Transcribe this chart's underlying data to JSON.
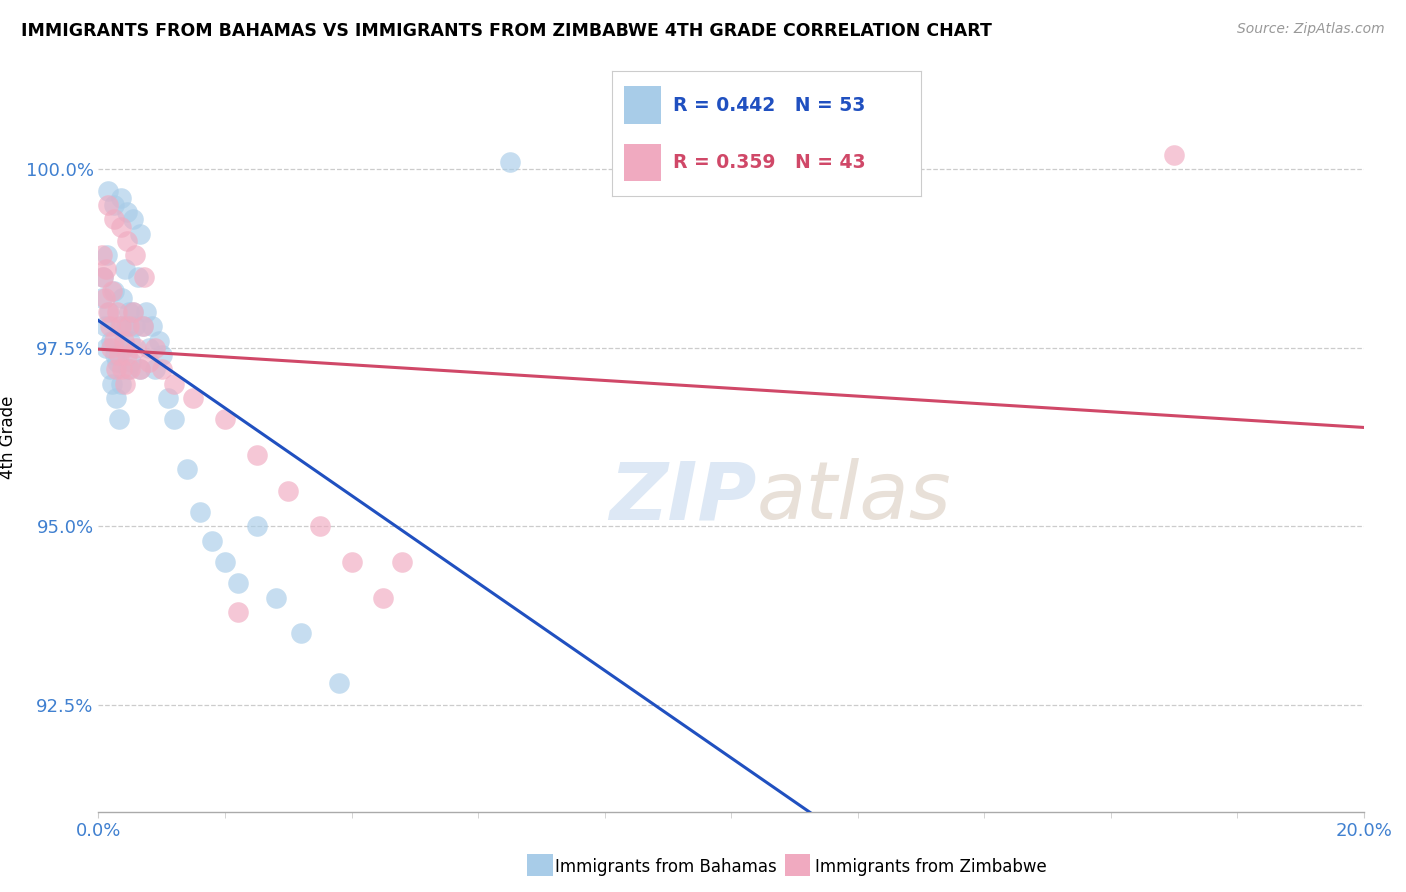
{
  "title": "IMMIGRANTS FROM BAHAMAS VS IMMIGRANTS FROM ZIMBABWE 4TH GRADE CORRELATION CHART",
  "source": "Source: ZipAtlas.com",
  "ylabel": "4th Grade",
  "y_ticks": [
    92.5,
    95.0,
    97.5,
    100.0
  ],
  "y_tick_labels": [
    "92.5%",
    "95.0%",
    "97.5%",
    "100.0%"
  ],
  "x_lim": [
    0.0,
    20.0
  ],
  "y_lim": [
    91.0,
    101.5
  ],
  "bahamas_color": "#a8cce8",
  "zimbabwe_color": "#f0aac0",
  "bahamas_line_color": "#2050c0",
  "zimbabwe_line_color": "#d04868",
  "tick_color": "#4080d0",
  "R_bahamas": 0.442,
  "N_bahamas": 53,
  "R_zimbabwe": 0.359,
  "N_zimbabwe": 43,
  "legend_label_bahamas": "Immigrants from Bahamas",
  "legend_label_zimbabwe": "Immigrants from Zimbabwe",
  "bahamas_x": [
    0.05,
    0.08,
    0.1,
    0.12,
    0.14,
    0.16,
    0.18,
    0.2,
    0.22,
    0.24,
    0.26,
    0.28,
    0.3,
    0.32,
    0.34,
    0.36,
    0.38,
    0.4,
    0.42,
    0.44,
    0.46,
    0.48,
    0.5,
    0.52,
    0.55,
    0.58,
    0.62,
    0.65,
    0.7,
    0.75,
    0.8,
    0.85,
    0.9,
    0.95,
    1.0,
    1.1,
    1.2,
    1.4,
    1.6,
    1.8,
    2.0,
    2.2,
    2.5,
    2.8,
    3.2,
    0.15,
    0.25,
    0.35,
    0.45,
    0.55,
    0.65,
    3.8,
    6.5
  ],
  "bahamas_y": [
    98.2,
    98.5,
    97.8,
    97.5,
    98.8,
    98.0,
    97.2,
    97.6,
    97.0,
    98.3,
    97.4,
    96.8,
    97.3,
    96.5,
    97.8,
    97.0,
    98.2,
    97.5,
    98.6,
    97.8,
    97.2,
    98.0,
    97.6,
    97.3,
    98.0,
    97.8,
    98.5,
    97.2,
    97.8,
    98.0,
    97.5,
    97.8,
    97.2,
    97.6,
    97.4,
    96.8,
    96.5,
    95.8,
    95.2,
    94.8,
    94.5,
    94.2,
    95.0,
    94.0,
    93.5,
    99.7,
    99.5,
    99.6,
    99.4,
    99.3,
    99.1,
    92.8,
    100.1
  ],
  "zimbabwe_x": [
    0.05,
    0.08,
    0.1,
    0.12,
    0.15,
    0.18,
    0.2,
    0.22,
    0.25,
    0.28,
    0.3,
    0.32,
    0.35,
    0.38,
    0.4,
    0.42,
    0.45,
    0.48,
    0.5,
    0.55,
    0.6,
    0.65,
    0.7,
    0.8,
    0.9,
    1.0,
    1.2,
    1.5,
    2.0,
    2.5,
    3.0,
    3.5,
    4.0,
    4.5,
    0.15,
    0.25,
    0.35,
    0.45,
    0.58,
    0.72,
    2.2,
    4.8,
    17.0
  ],
  "zimbabwe_y": [
    98.8,
    98.5,
    98.2,
    98.6,
    98.0,
    97.8,
    97.5,
    98.3,
    97.6,
    97.2,
    98.0,
    97.4,
    97.8,
    97.2,
    97.6,
    97.0,
    97.4,
    97.8,
    97.2,
    98.0,
    97.5,
    97.2,
    97.8,
    97.3,
    97.5,
    97.2,
    97.0,
    96.8,
    96.5,
    96.0,
    95.5,
    95.0,
    94.5,
    94.0,
    99.5,
    99.3,
    99.2,
    99.0,
    98.8,
    98.5,
    93.8,
    94.5,
    100.2
  ]
}
